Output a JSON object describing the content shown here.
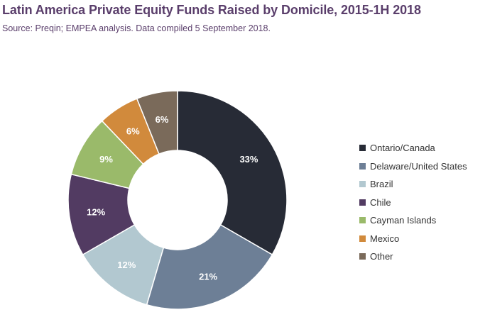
{
  "header": {
    "title": "Latin America Private Equity Funds Raised by Domicile, 2015-1H 2018",
    "source": "Source: Preqin; EMPEA analysis. Data compiled 5 September 2018."
  },
  "chart_data": {
    "type": "pie",
    "variant": "donut",
    "title": "Latin America Private Equity Funds Raised by Domicile, 2015-1H 2018",
    "subtitle": "Source: Preqin; EMPEA analysis. Data compiled 5 September 2018.",
    "legend_position": "right",
    "unit": "%",
    "categories": [
      "Ontario/Canada",
      "Delaware/United States",
      "Brazil",
      "Chile",
      "Cayman Islands",
      "Mexico",
      "Other"
    ],
    "values": [
      33,
      21,
      12,
      12,
      9,
      6,
      6
    ],
    "labels": [
      "33%",
      "21%",
      "12%",
      "12%",
      "9%",
      "6%",
      "6%"
    ],
    "colors": [
      "#272b36",
      "#6d7f96",
      "#b2c8d0",
      "#523b62",
      "#9aba6a",
      "#d18a3c",
      "#7a6a5a"
    ],
    "label_colors": [
      "#ffffff",
      "#ffffff",
      "#ffffff",
      "#ffffff",
      "#ffffff",
      "#ffffff",
      "#ffffff"
    ]
  }
}
